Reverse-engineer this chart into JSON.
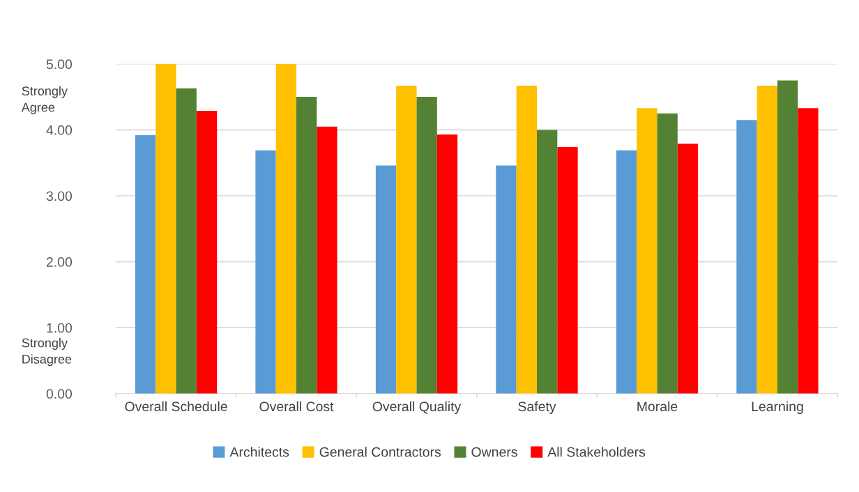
{
  "chart_data": {
    "type": "bar",
    "categories": [
      "Overall Schedule",
      "Overall Cost",
      "Overall Quality",
      "Safety",
      "Morale",
      "Learning"
    ],
    "series": [
      {
        "name": "Architects",
        "color": "#5b9bd5",
        "values": [
          3.92,
          3.69,
          3.46,
          3.46,
          3.69,
          4.15
        ]
      },
      {
        "name": "General Contractors",
        "color": "#ffc000",
        "values": [
          5.0,
          5.0,
          4.67,
          4.67,
          4.33,
          4.67
        ]
      },
      {
        "name": "Owners",
        "color": "#548235",
        "values": [
          4.63,
          4.5,
          4.5,
          4.0,
          4.25,
          4.75
        ]
      },
      {
        "name": "All Stakeholders",
        "color": "#ff0000",
        "values": [
          4.29,
          4.05,
          3.93,
          3.74,
          3.79,
          4.33
        ]
      }
    ],
    "ylim": [
      0,
      5
    ],
    "yticks": [
      {
        "value": 0,
        "label": "0.00"
      },
      {
        "value": 1,
        "label": "1.00"
      },
      {
        "value": 2,
        "label": "2.00"
      },
      {
        "value": 3,
        "label": "3.00"
      },
      {
        "value": 4,
        "label": "4.00"
      },
      {
        "value": 5,
        "label": "5.00"
      }
    ],
    "grid": "y",
    "legend": "bottom",
    "annotations": [
      "Strongly\nAgree",
      "Strongly\nDisagree"
    ]
  }
}
